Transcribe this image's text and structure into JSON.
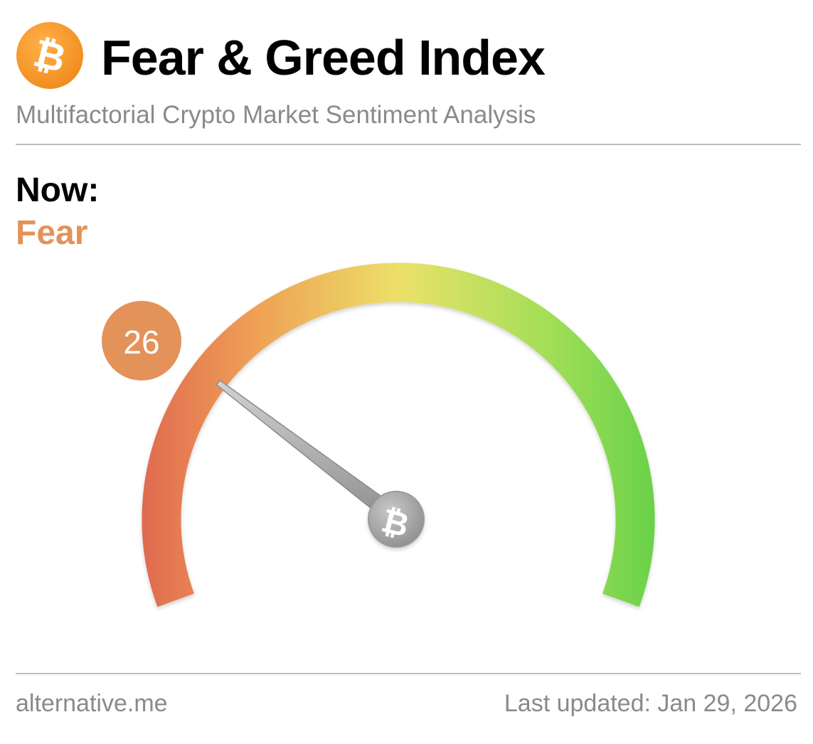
{
  "header": {
    "title": "Fear & Greed Index",
    "subtitle": "Multifactorial Crypto Market Sentiment Analysis",
    "logo_icon": "bitcoin-icon",
    "logo_color": "#f7931a"
  },
  "now": {
    "label": "Now:",
    "classification": "Fear",
    "classification_color": "#e3925a"
  },
  "gauge": {
    "value": "26",
    "min": 0,
    "max": 100,
    "badge_color": "#e3925a",
    "hub_icon": "bitcoin-icon",
    "colors": {
      "low": "#e06a50",
      "mid_low": "#efa055",
      "mid": "#ece069",
      "mid_high": "#a6df58",
      "high": "#6ad24a"
    }
  },
  "footer": {
    "source": "alternative.me",
    "updated": "Last updated: Jan 29, 2026"
  }
}
